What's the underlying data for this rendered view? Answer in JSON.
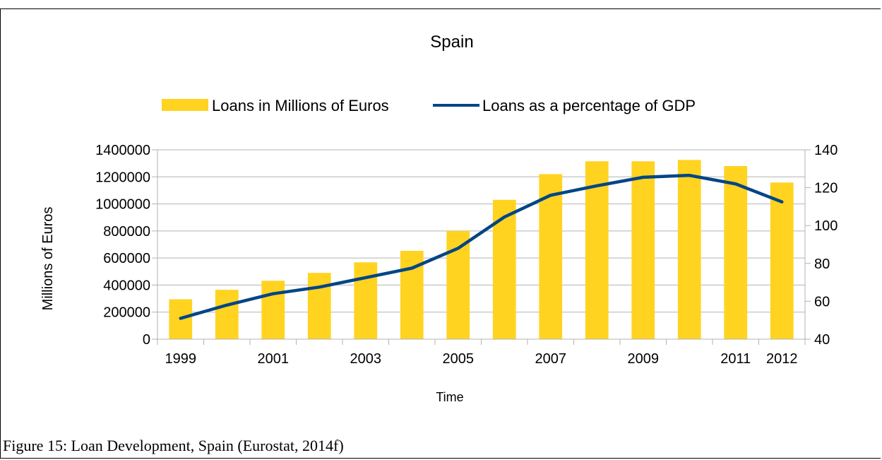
{
  "caption": "Figure 15: Loan Development, Spain  (Eurostat, 2014f)",
  "chart_data": {
    "type": "bar",
    "title": "Spain",
    "xlabel": "Time",
    "ylabel": "Millions of Euros",
    "ylabel_right": "",
    "ylim": [
      0,
      1400000
    ],
    "ylim_right": [
      40,
      140
    ],
    "y_ticks": [
      "0",
      "200000",
      "400000",
      "600000",
      "800000",
      "1000000",
      "1200000",
      "1400000"
    ],
    "y_ticks_right": [
      "40",
      "60",
      "80",
      "100",
      "120",
      "140"
    ],
    "grid": true,
    "legend_position": "top",
    "categories": [
      "1999",
      "2000",
      "2001",
      "2002",
      "2003",
      "2004",
      "2005",
      "2006",
      "2007",
      "2008",
      "2009",
      "2010",
      "2011",
      "2012"
    ],
    "x_tick_labels": [
      "1999",
      "",
      "2001",
      "",
      "2003",
      "",
      "2005",
      "",
      "2007",
      "",
      "2009",
      "",
      "2011",
      "2012"
    ],
    "series": [
      {
        "name": "Loans in Millions of Euros",
        "type": "bar",
        "axis": "left",
        "color": "#ffd320",
        "values": [
          295000,
          365000,
          432000,
          490000,
          568000,
          653000,
          800000,
          1030000,
          1220000,
          1315000,
          1315000,
          1325000,
          1280000,
          1158000
        ]
      },
      {
        "name": "Loans as a percentage of GDP",
        "type": "line",
        "axis": "right",
        "color": "#004586",
        "values": [
          51,
          58,
          64,
          67.5,
          72.5,
          77.5,
          88,
          104.5,
          116,
          121,
          125.5,
          126.5,
          122,
          112.5
        ]
      }
    ]
  }
}
